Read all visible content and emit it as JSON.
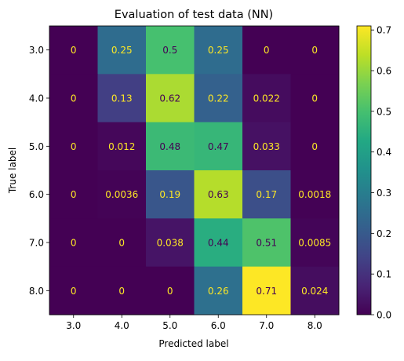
{
  "chart_data": {
    "type": "heatmap",
    "title": "Evaluation of test data (NN)",
    "xlabel": "Predicted label",
    "ylabel": "True label",
    "x_categories": [
      "3.0",
      "4.0",
      "5.0",
      "6.0",
      "7.0",
      "8.0"
    ],
    "y_categories": [
      "3.0",
      "4.0",
      "5.0",
      "6.0",
      "7.0",
      "8.0"
    ],
    "values": [
      [
        0,
        0.25,
        0.5,
        0.25,
        0,
        0
      ],
      [
        0,
        0.13,
        0.62,
        0.22,
        0.022,
        0
      ],
      [
        0,
        0.012,
        0.48,
        0.47,
        0.033,
        0
      ],
      [
        0,
        0.0036,
        0.19,
        0.63,
        0.17,
        0.0018
      ],
      [
        0,
        0,
        0.038,
        0.44,
        0.51,
        0.0085
      ],
      [
        0,
        0,
        0,
        0.26,
        0.71,
        0.024
      ]
    ],
    "cell_labels": [
      [
        "0",
        "0.25",
        "0.5",
        "0.25",
        "0",
        "0"
      ],
      [
        "0",
        "0.13",
        "0.62",
        "0.22",
        "0.022",
        "0"
      ],
      [
        "0",
        "0.012",
        "0.48",
        "0.47",
        "0.033",
        "0"
      ],
      [
        "0",
        "0.0036",
        "0.19",
        "0.63",
        "0.17",
        "0.0018"
      ],
      [
        "0",
        "0",
        "0.038",
        "0.44",
        "0.51",
        "0.0085"
      ],
      [
        "0",
        "0",
        "0",
        "0.26",
        "0.71",
        "0.024"
      ]
    ],
    "colormap": "viridis",
    "vmin": 0,
    "vmax": 0.71,
    "colorbar_ticks": [
      "0.0",
      "0.1",
      "0.2",
      "0.3",
      "0.4",
      "0.5",
      "0.6",
      "0.7"
    ],
    "colorbar_tick_values": [
      0,
      0.1,
      0.2,
      0.3,
      0.4,
      0.5,
      0.6,
      0.7
    ],
    "light_text_color": "#fde725",
    "dark_text_color": "#440154"
  }
}
